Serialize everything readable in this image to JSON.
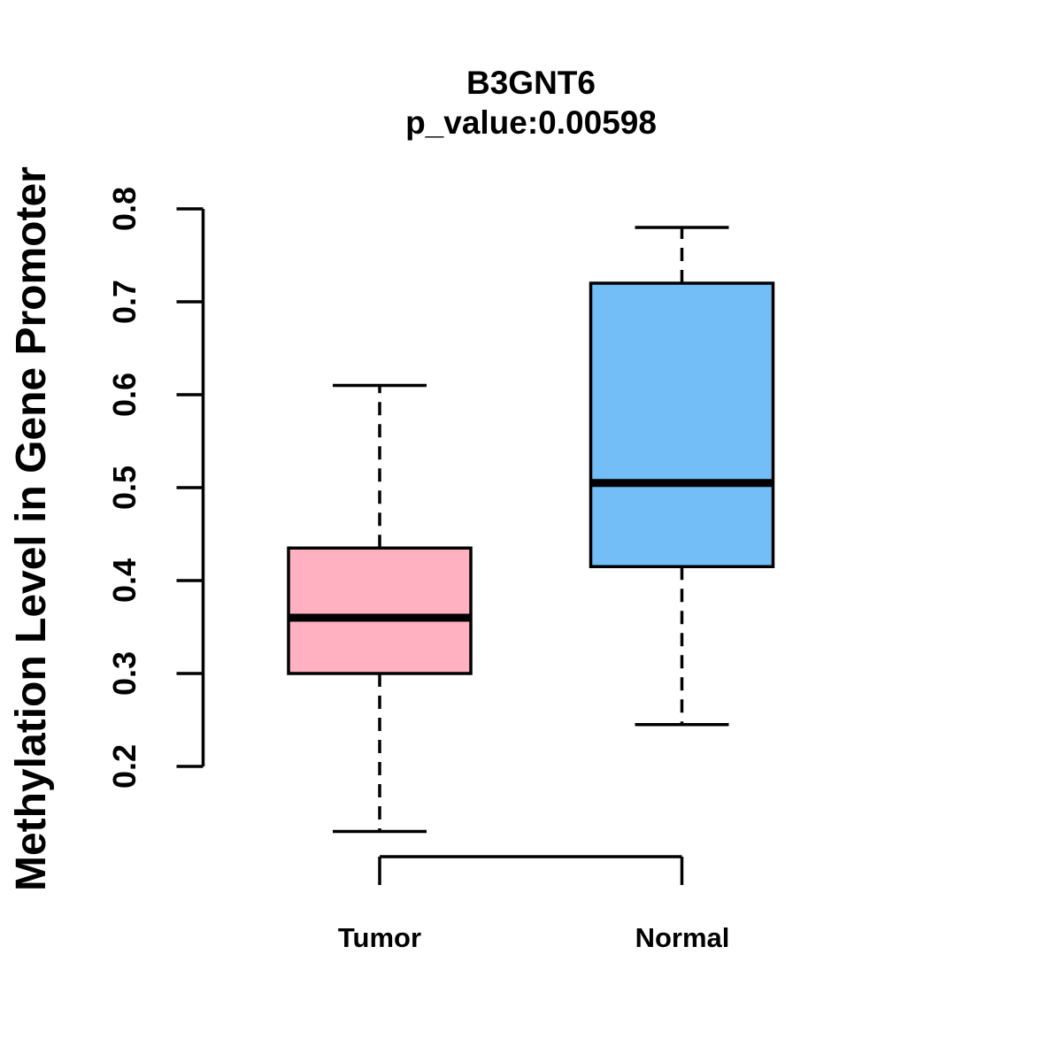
{
  "chart_data": {
    "type": "boxplot",
    "title": "B3GNT6",
    "subtitle": "p_value:0.00598",
    "ylabel": "Methylation Level in Gene Promoter",
    "xlabel": "",
    "categories": [
      "Tumor",
      "Normal"
    ],
    "series": [
      {
        "name": "Tumor",
        "fill_color": "#FFB1C1",
        "whisker_low": 0.13,
        "q1": 0.3,
        "median": 0.36,
        "q3": 0.435,
        "whisker_high": 0.61
      },
      {
        "name": "Normal",
        "fill_color": "#74BEF7",
        "whisker_low": 0.245,
        "q1": 0.415,
        "median": 0.505,
        "q3": 0.72,
        "whisker_high": 0.78
      }
    ],
    "yticks": [
      0.2,
      0.3,
      0.4,
      0.5,
      0.6,
      0.7,
      0.8
    ],
    "ylim": [
      0.2,
      0.8
    ],
    "grid": false,
    "legend": false,
    "stroke_color": "#000000",
    "background": "#FFFFFF"
  }
}
